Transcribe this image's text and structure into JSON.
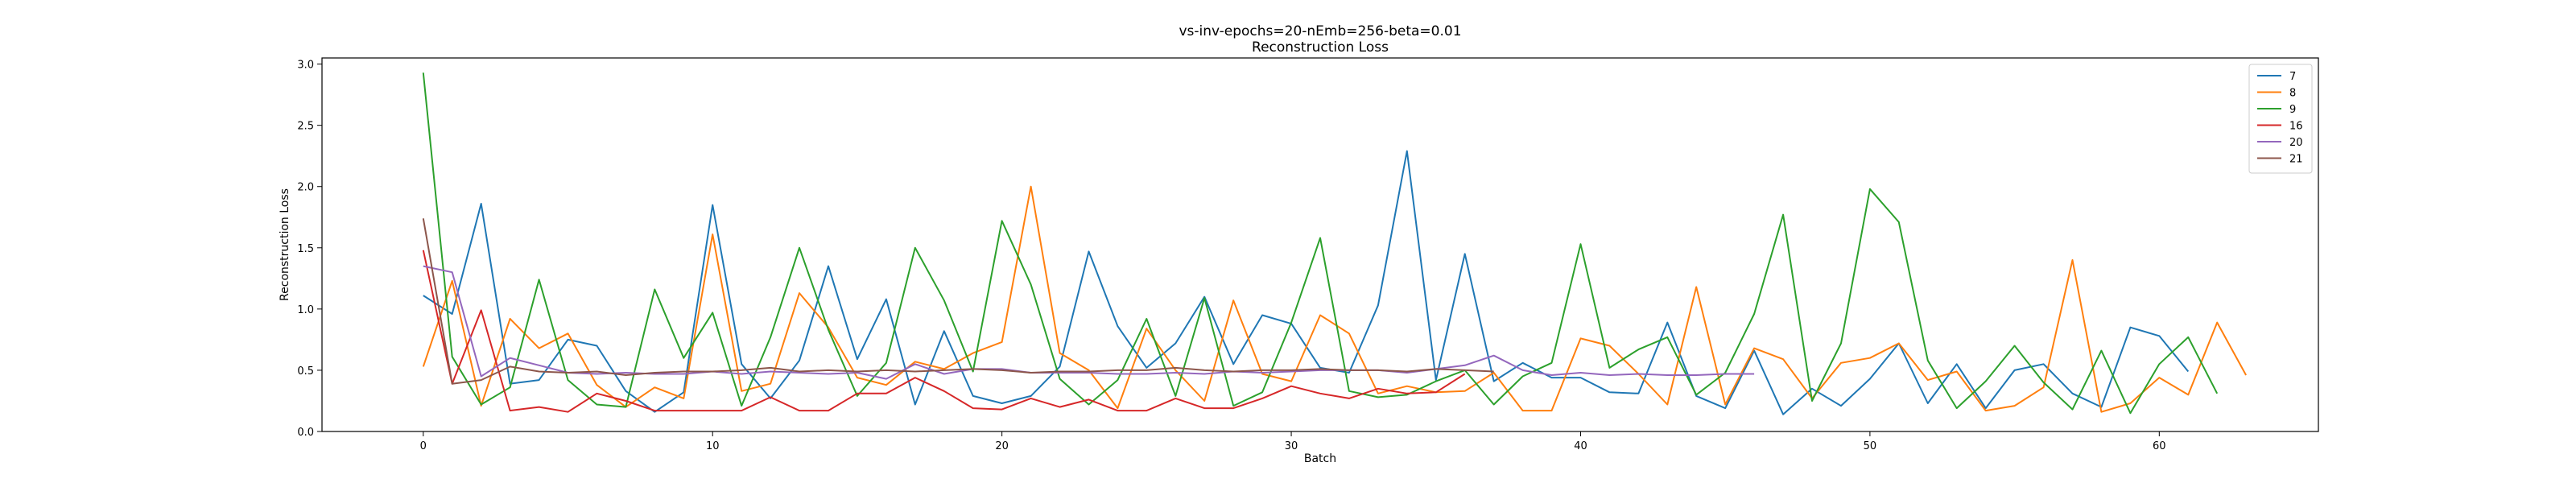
{
  "chart_data": {
    "type": "line",
    "title_lines": [
      "vs-inv-epochs=20-nEmb=256-beta=0.01",
      "Reconstruction Loss"
    ],
    "xlabel": "Batch",
    "ylabel": "Reconstruction Loss",
    "xlim": [
      -3.5,
      65.5
    ],
    "ylim": [
      0,
      3.05
    ],
    "xticks": [
      0,
      10,
      20,
      30,
      40,
      50,
      60
    ],
    "yticks": [
      0.0,
      0.5,
      1.0,
      1.5,
      2.0,
      2.5,
      3.0
    ],
    "xtick_labels": [
      "0",
      "10",
      "20",
      "30",
      "40",
      "50",
      "60"
    ],
    "ytick_labels": [
      "0.0",
      "0.5",
      "1.0",
      "1.5",
      "2.0",
      "2.5",
      "3.0"
    ],
    "grid": false,
    "legend_position": "top-right",
    "series": [
      {
        "name": "7",
        "color": "#1f77b4",
        "values": [
          1.11,
          0.96,
          1.86,
          0.39,
          0.42,
          0.75,
          0.7,
          0.33,
          0.16,
          0.32,
          1.85,
          0.55,
          0.27,
          0.58,
          1.35,
          0.59,
          1.08,
          0.22,
          0.82,
          0.29,
          0.23,
          0.29,
          0.53,
          1.47,
          0.86,
          0.52,
          0.72,
          1.1,
          0.55,
          0.95,
          0.88,
          0.52,
          0.48,
          1.03,
          2.29,
          0.42,
          1.45,
          0.41,
          0.56,
          0.44,
          0.44,
          0.32,
          0.31,
          0.89,
          0.29,
          0.19,
          0.66,
          0.14,
          0.35,
          0.21,
          0.43,
          0.72,
          0.23,
          0.55,
          0.19,
          0.5,
          0.55,
          0.31,
          0.2,
          0.85,
          0.78,
          0.49
        ]
      },
      {
        "name": "8",
        "color": "#ff7f0e",
        "values": [
          0.53,
          1.23,
          0.21,
          0.92,
          0.68,
          0.8,
          0.38,
          0.2,
          0.36,
          0.27,
          1.61,
          0.33,
          0.39,
          1.13,
          0.85,
          0.44,
          0.38,
          0.57,
          0.51,
          0.64,
          0.73,
          2.0,
          0.64,
          0.5,
          0.19,
          0.84,
          0.5,
          0.25,
          1.07,
          0.47,
          0.41,
          0.95,
          0.8,
          0.31,
          0.37,
          0.32,
          0.33,
          0.48,
          0.17,
          0.17,
          0.76,
          0.7,
          0.47,
          0.22,
          1.18,
          0.22,
          0.68,
          0.59,
          0.27,
          0.56,
          0.6,
          0.72,
          0.42,
          0.49,
          0.17,
          0.21,
          0.36,
          1.4,
          0.16,
          0.23,
          0.44,
          0.3,
          0.89,
          0.46
        ]
      },
      {
        "name": "9",
        "color": "#2ca02c",
        "values": [
          2.93,
          0.61,
          0.22,
          0.36,
          1.24,
          0.42,
          0.22,
          0.2,
          1.16,
          0.6,
          0.97,
          0.21,
          0.77,
          1.5,
          0.83,
          0.29,
          0.56,
          1.5,
          1.07,
          0.49,
          1.72,
          1.2,
          0.43,
          0.22,
          0.42,
          0.92,
          0.29,
          1.09,
          0.21,
          0.32,
          0.89,
          1.58,
          0.33,
          0.28,
          0.3,
          0.41,
          0.5,
          0.22,
          0.45,
          0.56,
          1.53,
          0.52,
          0.67,
          0.77,
          0.3,
          0.48,
          0.96,
          1.77,
          0.25,
          0.72,
          1.98,
          1.71,
          0.58,
          0.19,
          0.41,
          0.7,
          0.4,
          0.18,
          0.66,
          0.15,
          0.55,
          0.77,
          0.31
        ]
      },
      {
        "name": "16",
        "color": "#d62728",
        "values": [
          1.48,
          0.39,
          0.99,
          0.17,
          0.2,
          0.16,
          0.31,
          0.25,
          0.17,
          0.17,
          0.17,
          0.17,
          0.28,
          0.17,
          0.17,
          0.31,
          0.31,
          0.44,
          0.33,
          0.19,
          0.18,
          0.27,
          0.2,
          0.26,
          0.17,
          0.17,
          0.27,
          0.19,
          0.19,
          0.27,
          0.37,
          0.31,
          0.27,
          0.35,
          0.31,
          0.32,
          0.47
        ]
      },
      {
        "name": "20",
        "color": "#9467bd",
        "values": [
          1.35,
          1.3,
          0.45,
          0.6,
          0.54,
          0.48,
          0.47,
          0.48,
          0.47,
          0.47,
          0.49,
          0.47,
          0.49,
          0.48,
          0.47,
          0.48,
          0.43,
          0.55,
          0.47,
          0.51,
          0.51,
          0.48,
          0.48,
          0.48,
          0.47,
          0.47,
          0.48,
          0.47,
          0.49,
          0.48,
          0.49,
          0.5,
          0.5,
          0.5,
          0.48,
          0.51,
          0.54,
          0.62,
          0.5,
          0.46,
          0.48,
          0.46,
          0.47,
          0.46,
          0.46,
          0.47,
          0.47
        ]
      },
      {
        "name": "21",
        "color": "#8c564b",
        "values": [
          1.74,
          0.39,
          0.42,
          0.53,
          0.49,
          0.48,
          0.49,
          0.46,
          0.48,
          0.49,
          0.49,
          0.5,
          0.52,
          0.49,
          0.5,
          0.49,
          0.5,
          0.49,
          0.5,
          0.51,
          0.5,
          0.48,
          0.49,
          0.49,
          0.5,
          0.5,
          0.52,
          0.5,
          0.49,
          0.5,
          0.5,
          0.51,
          0.5,
          0.5,
          0.49,
          0.51,
          0.5,
          0.49
        ]
      }
    ]
  }
}
